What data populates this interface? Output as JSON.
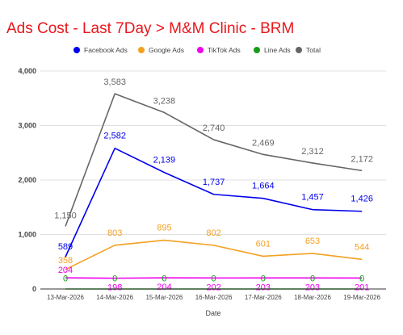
{
  "colors": {
    "title": "#e8171b",
    "grid": "#e0e0e0",
    "axis": "#333333"
  },
  "chart_data": {
    "type": "line",
    "title": "Ads Cost - Last 7Day > M&M Clinic - BRM",
    "xlabel": "Date",
    "ylabel": "",
    "categories": [
      "13-Mar-2026",
      "14-Mar-2026",
      "15-Mar-2026",
      "16-Mar-2026",
      "17-Mar-2026",
      "18-Mar-2026",
      "19-Mar-2026"
    ],
    "ylim": [
      0,
      4000
    ],
    "yticks": [
      0,
      1000,
      2000,
      3000,
      4000
    ],
    "ytick_labels": [
      "0",
      "1,000",
      "2,000",
      "3,000",
      "4,000"
    ],
    "grid": true,
    "legend_position": "top-left",
    "series": [
      {
        "name": "Facebook Ads",
        "color": "#0000ee",
        "values": [
          589,
          2582,
          2139,
          1737,
          1664,
          1457,
          1426
        ],
        "labels": [
          "589",
          "2,582",
          "2,139",
          "1,737",
          "1,664",
          "1,457",
          "1,426"
        ]
      },
      {
        "name": "Google Ads",
        "color": "#f4a021",
        "values": [
          358,
          803,
          895,
          802,
          601,
          653,
          544
        ],
        "labels": [
          "358",
          "803",
          "895",
          "802",
          "601",
          "653",
          "544"
        ]
      },
      {
        "name": "TikTok Ads",
        "color": "#ee00ee",
        "values": [
          204,
          198,
          204,
          202,
          203,
          203,
          201
        ],
        "labels": [
          "204",
          "198",
          "204",
          "202",
          "203",
          "203",
          "201"
        ]
      },
      {
        "name": "Line Ads",
        "color": "#1a9a1a",
        "values": [
          0,
          0,
          0,
          0,
          0,
          0,
          0
        ],
        "labels": [
          "0",
          "0",
          "0",
          "0",
          "0",
          "0",
          "0"
        ]
      },
      {
        "name": "Total",
        "color": "#666666",
        "values": [
          1150,
          3583,
          3238,
          2740,
          2469,
          2312,
          2172
        ],
        "labels": [
          "1,150",
          "3,583",
          "3,238",
          "2,740",
          "2,469",
          "2,312",
          "2,172"
        ]
      }
    ]
  }
}
